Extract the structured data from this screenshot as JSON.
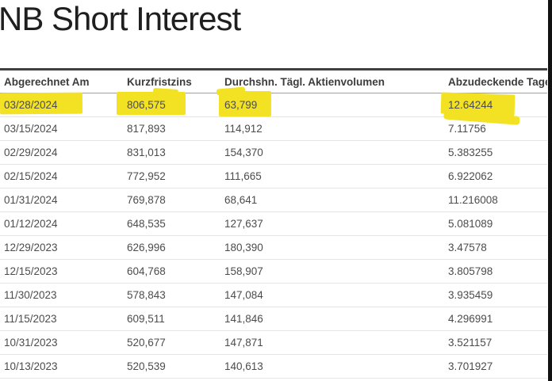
{
  "page": {
    "title": "NB Short Interest"
  },
  "colors": {
    "highlight": "#f2e223",
    "title_text": "#1f1f1f",
    "header_text": "#3c3c3c",
    "body_text": "#4c4c4c",
    "table_top_border": "#414141",
    "row_border": "#e4e4e4",
    "right_bar": "#121212"
  },
  "table": {
    "columns": [
      "Abgerechnet Am",
      "Kurzfristzins",
      "Durchshn. Tägl. Aktienvolumen",
      "Abzudeckende Tage"
    ],
    "rows": [
      [
        "03/28/2024",
        "806,575",
        "63,799",
        "12.64244"
      ],
      [
        "03/15/2024",
        "817,893",
        "114,912",
        "7.11756"
      ],
      [
        "02/29/2024",
        "831,013",
        "154,370",
        "5.383255"
      ],
      [
        "02/15/2024",
        "772,952",
        "111,665",
        "6.922062"
      ],
      [
        "01/31/2024",
        "769,878",
        "68,641",
        "11.216008"
      ],
      [
        "01/12/2024",
        "648,535",
        "127,637",
        "5.081089"
      ],
      [
        "12/29/2023",
        "626,996",
        "180,390",
        "3.47578"
      ],
      [
        "12/15/2023",
        "604,768",
        "158,907",
        "3.805798"
      ],
      [
        "11/30/2023",
        "578,843",
        "147,084",
        "3.935459"
      ],
      [
        "11/15/2023",
        "609,511",
        "141,846",
        "4.296991"
      ],
      [
        "10/31/2023",
        "520,677",
        "147,871",
        "3.521157"
      ],
      [
        "10/13/2023",
        "520,539",
        "140,613",
        "3.701927"
      ]
    ],
    "highlighted_row_index": 0
  }
}
